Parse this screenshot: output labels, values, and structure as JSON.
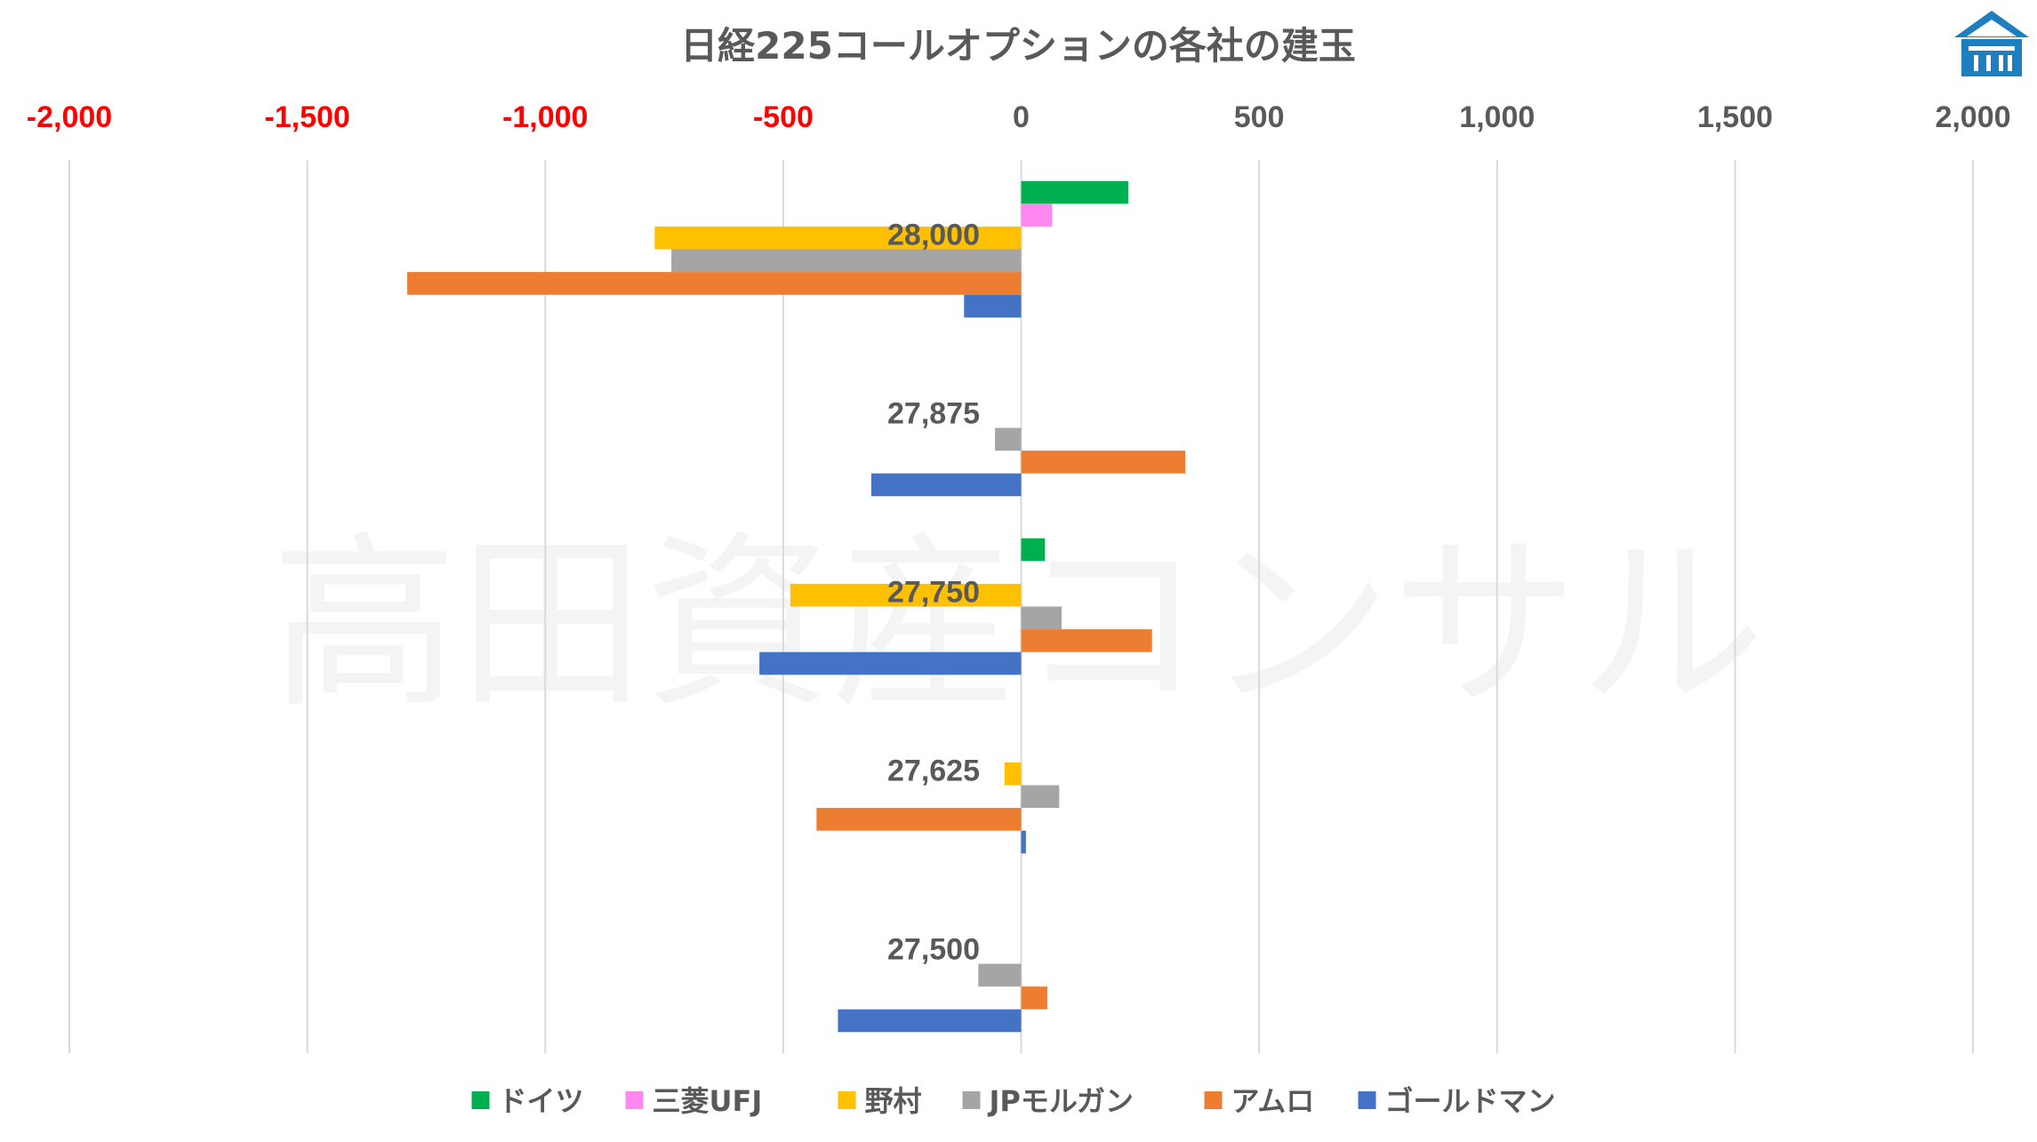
{
  "chart_data": {
    "type": "bar",
    "orientation": "horizontal",
    "title": "日経225コールオプションの各社の建玉",
    "watermark": "高田資産コンサル",
    "xlim": [
      -2000,
      2000
    ],
    "x_ticks": [
      -2000,
      -1500,
      -1000,
      -500,
      0,
      500,
      1000,
      1500,
      2000
    ],
    "x_tick_labels": [
      "-2,000",
      "-1,500",
      "-1,000",
      "-500",
      "0",
      "500",
      "1,000",
      "1,500",
      "2,000"
    ],
    "negative_tick_color": "#ff0000",
    "positive_tick_color": "#595959",
    "grid": "vertical",
    "legend_position": "bottom",
    "categories": [
      "28,000",
      "27,875",
      "27,750",
      "27,625",
      "27,500"
    ],
    "series": [
      {
        "name": "ドイツ",
        "color": "#00b050",
        "values": [
          225,
          0,
          50,
          0,
          0
        ]
      },
      {
        "name": "三菱UFJ",
        "color": "#ff88f0",
        "values": [
          65,
          0,
          0,
          0,
          0
        ]
      },
      {
        "name": "野村",
        "color": "#ffc000",
        "values": [
          -770,
          0,
          -485,
          -35,
          0
        ]
      },
      {
        "name": "JPモルガン",
        "color": "#a5a5a5",
        "values": [
          -735,
          -55,
          85,
          80,
          -90
        ]
      },
      {
        "name": "アムロ",
        "color": "#ed7d31",
        "values": [
          -1290,
          345,
          275,
          -430,
          55
        ]
      },
      {
        "name": "ゴールドマン",
        "color": "#4472c4",
        "values": [
          -120,
          -315,
          -550,
          10,
          -385
        ]
      }
    ]
  },
  "logo": {
    "name": "takata-logo",
    "color": "#1e7fc0"
  }
}
